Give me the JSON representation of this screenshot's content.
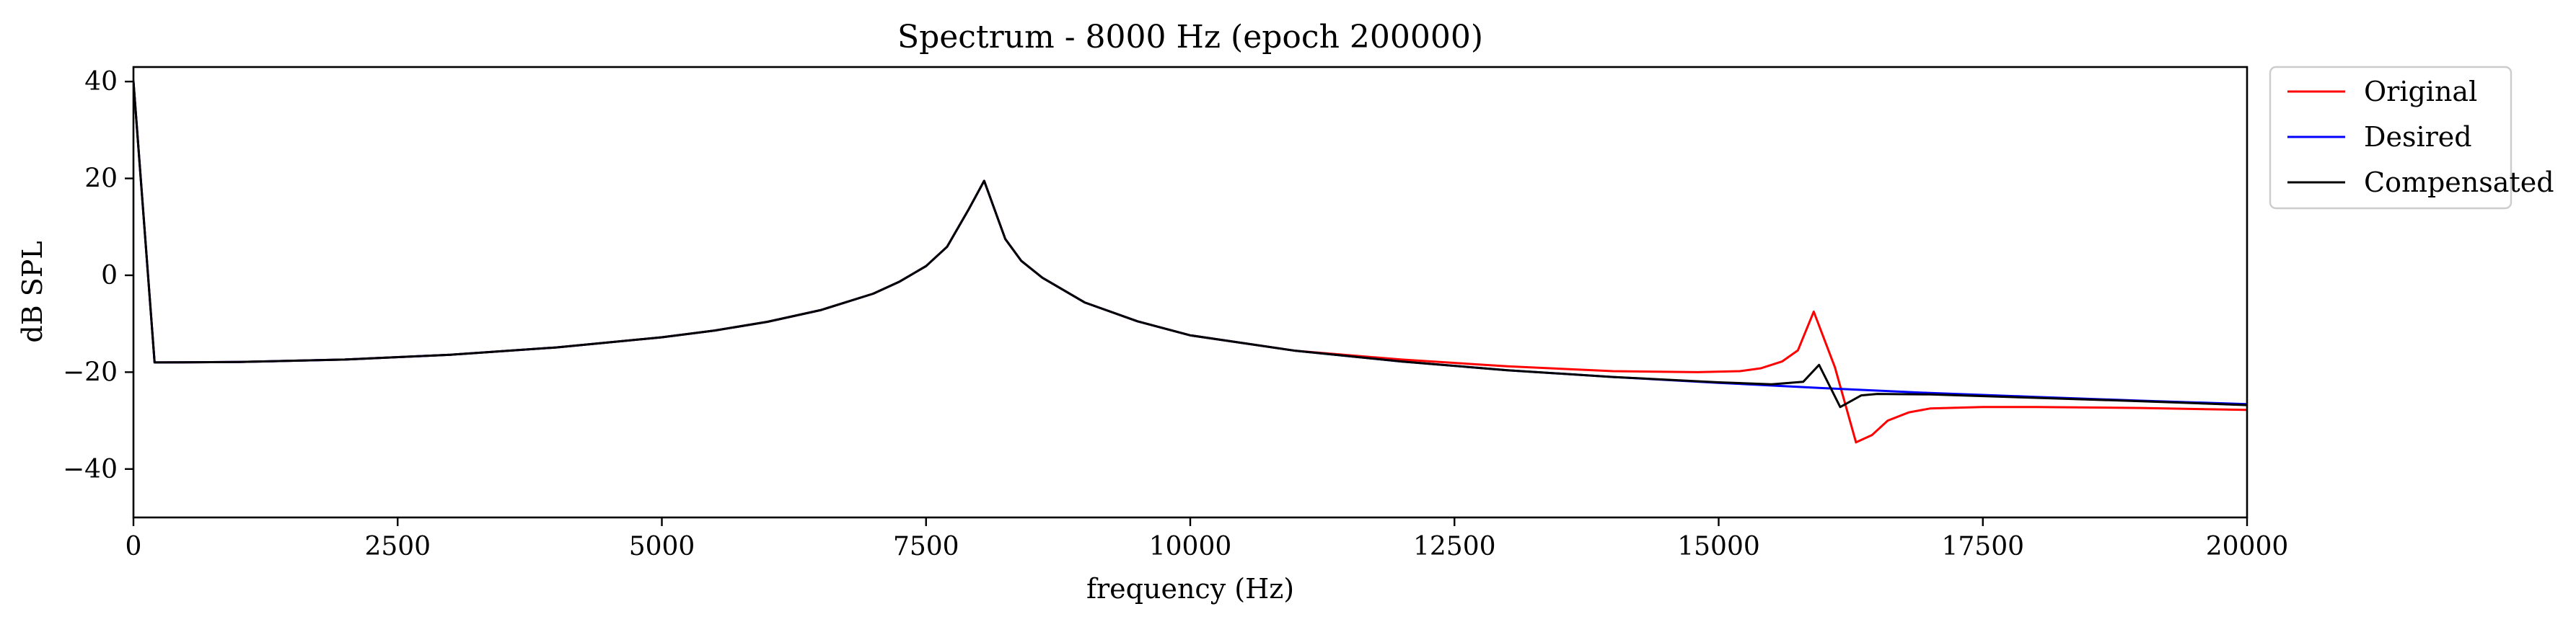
{
  "chart_data": {
    "type": "line",
    "title": "Spectrum - 8000 Hz (epoch 200000)",
    "xlabel": "frequency (Hz)",
    "ylabel": "dB SPL",
    "xlim": [
      0,
      20000
    ],
    "ylim": [
      -50,
      43
    ],
    "xticks": [
      0,
      2500,
      5000,
      7500,
      10000,
      12500,
      15000,
      17500,
      20000
    ],
    "xtick_labels": [
      "0",
      "2500",
      "5000",
      "7500",
      "10000",
      "12500",
      "15000",
      "17500",
      "20000"
    ],
    "yticks": [
      40,
      20,
      0,
      -20,
      -40
    ],
    "ytick_labels": [
      "40",
      "20",
      "0",
      "−20",
      "−40"
    ],
    "grid": false,
    "legend_position": "outside-top-right",
    "series": [
      {
        "name": "Original",
        "color": "#ff0000",
        "x": [
          0,
          200,
          1000,
          2000,
          3000,
          4000,
          5000,
          5500,
          6000,
          6500,
          7000,
          7250,
          7500,
          7700,
          7900,
          8050,
          8250,
          8400,
          8600,
          9000,
          9500,
          10000,
          11000,
          12000,
          13000,
          14000,
          14800,
          15200,
          15400,
          15600,
          15750,
          15900,
          16100,
          16300,
          16450,
          16600,
          16800,
          17000,
          17500,
          18000,
          19000,
          20000
        ],
        "y": [
          40,
          -18,
          -17.9,
          -17.4,
          -16.4,
          -14.9,
          -12.8,
          -11.4,
          -9.6,
          -7.2,
          -3.8,
          -1.3,
          1.9,
          5.9,
          13.5,
          19.5,
          7.5,
          3,
          -0.5,
          -5.6,
          -9.5,
          -12.4,
          -15.6,
          -17.4,
          -18.8,
          -19.8,
          -20,
          -19.8,
          -19.2,
          -17.8,
          -15.5,
          -7.5,
          -19,
          -34.5,
          -33,
          -30,
          -28.3,
          -27.5,
          -27.2,
          -27.2,
          -27.4,
          -27.8
        ]
      },
      {
        "name": "Desired",
        "color": "#0000ff",
        "x": [
          0,
          200,
          1000,
          2000,
          3000,
          4000,
          5000,
          5500,
          6000,
          6500,
          7000,
          7250,
          7500,
          7700,
          7900,
          8050,
          8250,
          8400,
          8600,
          9000,
          9500,
          10000,
          11000,
          12000,
          13000,
          14000,
          15000,
          16000,
          17000,
          18000,
          19000,
          20000
        ],
        "y": [
          40,
          -18,
          -17.9,
          -17.4,
          -16.4,
          -14.9,
          -12.8,
          -11.4,
          -9.6,
          -7.2,
          -3.8,
          -1.3,
          1.9,
          5.9,
          13.5,
          19.5,
          7.5,
          3,
          -0.5,
          -5.6,
          -9.5,
          -12.4,
          -15.6,
          -17.8,
          -19.6,
          -21,
          -22.2,
          -23.3,
          -24.3,
          -25.1,
          -25.9,
          -26.6
        ]
      },
      {
        "name": "Compensated",
        "color": "#000000",
        "x": [
          0,
          200,
          1000,
          2000,
          3000,
          4000,
          5000,
          5500,
          6000,
          6500,
          7000,
          7250,
          7500,
          7700,
          7900,
          8050,
          8250,
          8400,
          8600,
          9000,
          9500,
          10000,
          11000,
          12000,
          13000,
          14000,
          15000,
          15500,
          15800,
          15950,
          16150,
          16350,
          16500,
          17000,
          18000,
          19000,
          20000
        ],
        "y": [
          40,
          -18,
          -17.9,
          -17.4,
          -16.4,
          -14.9,
          -12.8,
          -11.4,
          -9.6,
          -7.2,
          -3.8,
          -1.3,
          1.9,
          5.9,
          13.5,
          19.5,
          7.5,
          3,
          -0.5,
          -5.6,
          -9.5,
          -12.4,
          -15.6,
          -17.8,
          -19.6,
          -21,
          -22.1,
          -22.5,
          -22,
          -18.5,
          -27.2,
          -24.8,
          -24.5,
          -24.6,
          -25.3,
          -26,
          -26.8
        ]
      }
    ]
  }
}
